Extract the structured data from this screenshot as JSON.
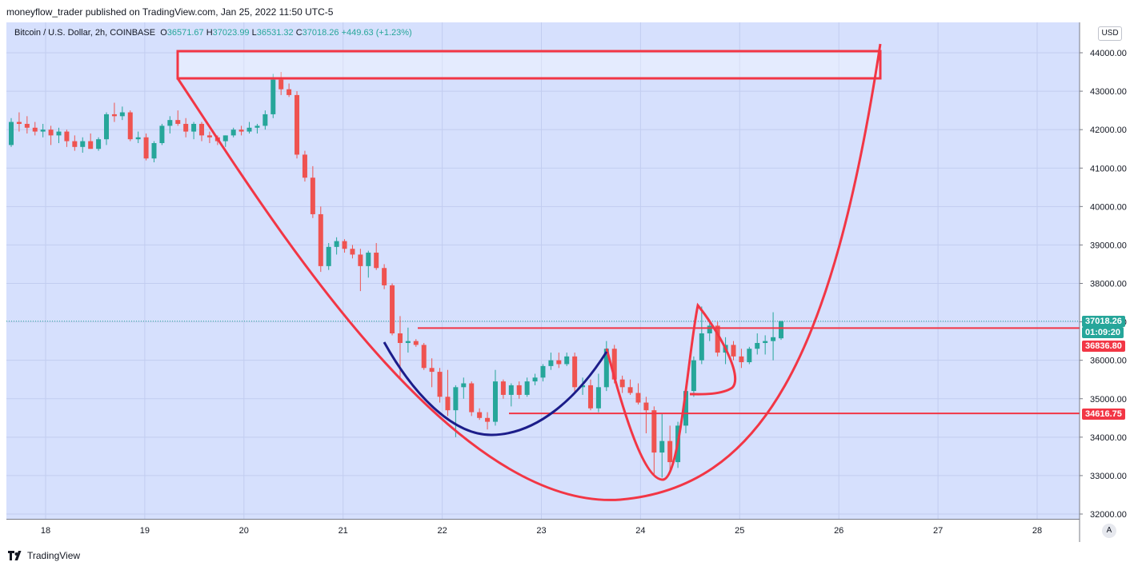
{
  "header": {
    "publisher": "moneyflow_trader published on TradingView.com, Jan 25, 2022 11:50 UTC-5"
  },
  "legend": {
    "symbol": "Bitcoin / U.S. Dollar, 2h, COINBASE",
    "o_label": "O",
    "o": "36571.67",
    "h_label": "H",
    "h": "37023.99",
    "l_label": "L",
    "l": "36531.32",
    "c_label": "C",
    "c": "37018.26",
    "change": "+449.63 (+1.23%)"
  },
  "currency": "USD",
  "auto_button": "A",
  "footer": {
    "brand": "TradingView"
  },
  "colors": {
    "up": "#26a69a",
    "down": "#ef5350",
    "drawing": "#f23645",
    "cup_small": "#1c1d8a",
    "background": "#d6e0fd"
  },
  "price_tags": {
    "current": "37018.26",
    "countdown": "01:09:20",
    "resistance": "36836.80",
    "support": "34616.75"
  },
  "chart_data": {
    "type": "candlestick",
    "title": "Bitcoin / U.S. Dollar, 2h, COINBASE",
    "ylim": [
      31900,
      44500
    ],
    "xlim": [
      17.55,
      28.4
    ],
    "y_ticks": [
      "32000.00",
      "33000.00",
      "34000.00",
      "35000.00",
      "36000.00",
      "37000.00",
      "38000.00",
      "39000.00",
      "40000.00",
      "41000.00",
      "42000.00",
      "43000.00",
      "44000.00"
    ],
    "x_ticks": [
      "18",
      "19",
      "20",
      "21",
      "22",
      "23",
      "24",
      "25",
      "26",
      "27",
      "28"
    ],
    "grid": true,
    "candles": [
      [
        41600,
        42300,
        41550,
        42200
      ],
      [
        42200,
        42450,
        41950,
        42150
      ],
      [
        42150,
        42350,
        41900,
        42050
      ],
      [
        42050,
        42200,
        41850,
        41950
      ],
      [
        41950,
        42150,
        41800,
        42000
      ],
      [
        42000,
        42100,
        41600,
        41850
      ],
      [
        41850,
        42050,
        41650,
        41950
      ],
      [
        41950,
        42000,
        41550,
        41700
      ],
      [
        41700,
        41850,
        41450,
        41550
      ],
      [
        41550,
        41800,
        41400,
        41700
      ],
      [
        41700,
        41900,
        41500,
        41500
      ],
      [
        41500,
        41800,
        41450,
        41750
      ],
      [
        41750,
        42450,
        41600,
        42400
      ],
      [
        42400,
        42700,
        42200,
        42350
      ],
      [
        42350,
        42600,
        42250,
        42450
      ],
      [
        42450,
        42500,
        41700,
        41750
      ],
      [
        41750,
        41950,
        41650,
        41800
      ],
      [
        41800,
        41900,
        41200,
        41250
      ],
      [
        41250,
        41700,
        41150,
        41650
      ],
      [
        41650,
        42150,
        41600,
        42100
      ],
      [
        42100,
        42350,
        41900,
        42250
      ],
      [
        42250,
        42500,
        42100,
        42150
      ],
      [
        42150,
        42300,
        41800,
        41950
      ],
      [
        41950,
        42200,
        41750,
        42150
      ],
      [
        42150,
        42200,
        41700,
        41850
      ],
      [
        41850,
        41950,
        41650,
        41800
      ],
      [
        41800,
        41850,
        41600,
        41700
      ],
      [
        41700,
        41850,
        41550,
        41850
      ],
      [
        41850,
        42050,
        41800,
        42000
      ],
      [
        42000,
        42100,
        41850,
        41950
      ],
      [
        41950,
        42200,
        41900,
        42050
      ],
      [
        42050,
        42150,
        41900,
        42100
      ],
      [
        42100,
        42500,
        42000,
        42400
      ],
      [
        42400,
        43450,
        42300,
        43300
      ],
      [
        43300,
        43500,
        42900,
        43050
      ],
      [
        43050,
        43200,
        42850,
        42900
      ],
      [
        42900,
        43000,
        41250,
        41350
      ],
      [
        41350,
        41450,
        40650,
        40750
      ],
      [
        40750,
        41050,
        39700,
        39800
      ],
      [
        39800,
        40000,
        38300,
        38450
      ],
      [
        38450,
        39050,
        38350,
        38950
      ],
      [
        38950,
        39200,
        38750,
        39100
      ],
      [
        39100,
        39150,
        38800,
        38900
      ],
      [
        38900,
        39000,
        38650,
        38750
      ],
      [
        38750,
        38900,
        37800,
        38450
      ],
      [
        38450,
        38850,
        38150,
        38800
      ],
      [
        38800,
        39050,
        38350,
        38400
      ],
      [
        38400,
        38500,
        37850,
        37950
      ],
      [
        37950,
        38000,
        36650,
        36700
      ],
      [
        36700,
        37150,
        35500,
        36450
      ],
      [
        36450,
        36850,
        36200,
        36500
      ],
      [
        36500,
        36550,
        36350,
        36400
      ],
      [
        36400,
        36450,
        35750,
        35800
      ],
      [
        35800,
        36050,
        35300,
        35700
      ],
      [
        35700,
        35800,
        34900,
        35050
      ],
      [
        35050,
        35750,
        34550,
        34700
      ],
      [
        34700,
        35350,
        34000,
        35300
      ],
      [
        35300,
        35550,
        35000,
        35400
      ],
      [
        35400,
        35450,
        34550,
        34650
      ],
      [
        34650,
        34750,
        34450,
        34500
      ],
      [
        34500,
        34650,
        34200,
        34400
      ],
      [
        34400,
        35750,
        34300,
        35450
      ],
      [
        35450,
        35500,
        35000,
        35100
      ],
      [
        35100,
        35400,
        34800,
        35350
      ],
      [
        35350,
        35450,
        35000,
        35100
      ],
      [
        35100,
        35550,
        35050,
        35450
      ],
      [
        35450,
        35650,
        35350,
        35550
      ],
      [
        35550,
        35900,
        35450,
        35850
      ],
      [
        35850,
        36200,
        35750,
        36000
      ],
      [
        36000,
        36200,
        35800,
        35900
      ],
      [
        35900,
        36200,
        35850,
        36100
      ],
      [
        36100,
        36200,
        35150,
        35300
      ],
      [
        35300,
        35550,
        35100,
        35350
      ],
      [
        35350,
        35500,
        34700,
        34750
      ],
      [
        34750,
        35650,
        34650,
        35300
      ],
      [
        35300,
        36500,
        35200,
        36300
      ],
      [
        36300,
        36400,
        35400,
        35500
      ],
      [
        35500,
        35600,
        35150,
        35300
      ],
      [
        35300,
        35500,
        35100,
        35150
      ],
      [
        35150,
        35400,
        34850,
        34900
      ],
      [
        34900,
        35050,
        34100,
        34700
      ],
      [
        34700,
        34800,
        33000,
        33600
      ],
      [
        33600,
        34600,
        32950,
        33900
      ],
      [
        33900,
        34300,
        33100,
        33350
      ],
      [
        33350,
        34400,
        33200,
        34300
      ],
      [
        34300,
        35250,
        34100,
        35200
      ],
      [
        35200,
        36100,
        35050,
        36000
      ],
      [
        36000,
        37400,
        35900,
        36700
      ],
      [
        36700,
        37050,
        36500,
        36900
      ],
      [
        36900,
        37000,
        36100,
        36200
      ],
      [
        36200,
        36600,
        35900,
        36400
      ],
      [
        36400,
        36500,
        36000,
        36100
      ],
      [
        36100,
        36300,
        35800,
        35950
      ],
      [
        35950,
        36350,
        35900,
        36300
      ],
      [
        36300,
        36700,
        36150,
        36450
      ],
      [
        36450,
        36650,
        36150,
        36500
      ],
      [
        36500,
        37250,
        36000,
        36600
      ],
      [
        36571.67,
        37023.99,
        36531.32,
        37018.26
      ]
    ],
    "horizontal_lines": [
      36836.8,
      34616.75
    ],
    "current_price": 37018.26
  }
}
